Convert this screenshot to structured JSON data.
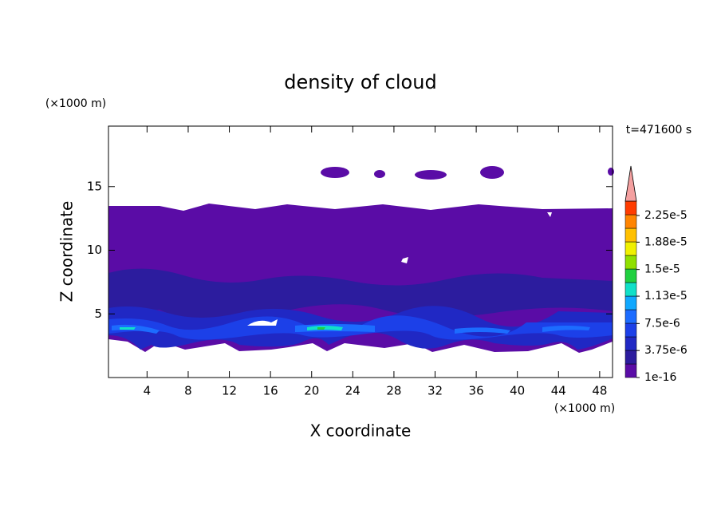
{
  "chart_data": {
    "type": "contour",
    "title": "density of cloud",
    "xlabel": "X coordinate",
    "ylabel": "Z coordinate",
    "xunit": "(×1000 m)",
    "yunit": "(×1000 m)",
    "time_label": "t=471600 s",
    "xlim": [
      0.25,
      49.25
    ],
    "ylim": [
      0,
      19.75
    ],
    "xticks": [
      4,
      8,
      12,
      16,
      20,
      24,
      28,
      32,
      36,
      40,
      44,
      48
    ],
    "yticks": [
      5,
      10,
      15
    ],
    "colorbar": {
      "ticks": [
        1e-16,
        {
          "value": 3.75e-06,
          "label": "3.75e-6"
        },
        {
          "value": 7.5e-06,
          "label": "7.5e-6"
        },
        {
          "value": 1.13e-05,
          "label": "1.13e-5"
        },
        {
          "value": 1.5e-05,
          "label": "1.5e-5"
        },
        {
          "value": 1.88e-05,
          "label": "1.88e-5"
        },
        {
          "value": 2.25e-05,
          "label": "2.25e-5"
        }
      ],
      "colors": [
        "#5a0ca6",
        "#2c1c9e",
        "#2028c4",
        "#1c40e8",
        "#1c6cff",
        "#10a8ff",
        "#10e0c8",
        "#20d040",
        "#90e000",
        "#f0f000",
        "#ffc000",
        "#ff8400",
        "#ff3c00"
      ],
      "extend_color": "#f4a0a0"
    }
  }
}
